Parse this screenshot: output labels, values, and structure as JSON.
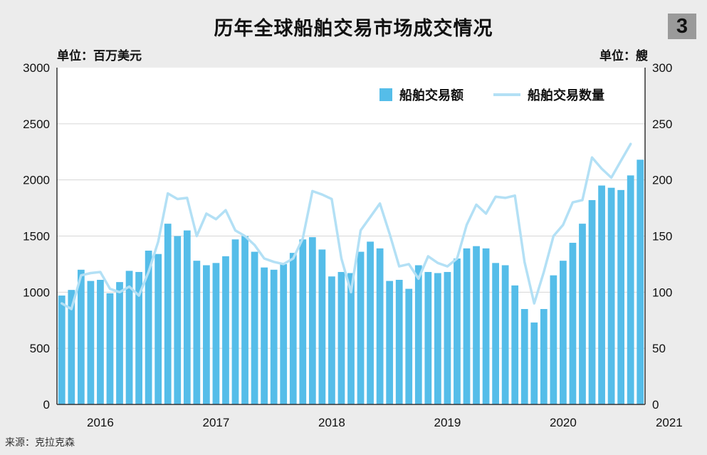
{
  "header": {
    "title": "历年全球船舶交易市场成交情况",
    "badge": "3",
    "unit_left": "单位：百万美元",
    "unit_right": "单位：艘"
  },
  "footer": {
    "source": "来源：克拉克森"
  },
  "colors": {
    "bar": "#55bde9",
    "line": "#b3e0f5",
    "background": "#ececec",
    "plot_background": "#ffffff"
  },
  "chart_data": {
    "type": "bar",
    "title": "历年全球船舶交易市场成交情况",
    "xlabel": "",
    "ylabel": "单位：百万美元",
    "y2label": "单位：艘",
    "ylim": [
      0,
      3000
    ],
    "y2lim": [
      0,
      300
    ],
    "yticks": [
      "0",
      "500",
      "1000",
      "1500",
      "2000",
      "2500",
      "3000"
    ],
    "y2ticks": [
      "0",
      "50",
      "100",
      "150",
      "200",
      "250",
      "300"
    ],
    "year_labels": [
      {
        "label": "2016",
        "index": 4
      },
      {
        "label": "2017",
        "index": 16
      },
      {
        "label": "2018",
        "index": 28
      },
      {
        "label": "2019",
        "index": 40
      },
      {
        "label": "2020",
        "index": 52
      },
      {
        "label": "2021",
        "index": 63
      }
    ],
    "grid": true,
    "legend_position": "top-right",
    "series": [
      {
        "name": "船舶交易额",
        "type": "bar",
        "axis": "left",
        "values": [
          970,
          1020,
          1200,
          1100,
          1110,
          990,
          1090,
          1190,
          1180,
          1370,
          1340,
          1610,
          1500,
          1550,
          1280,
          1240,
          1260,
          1320,
          1470,
          1500,
          1360,
          1220,
          1200,
          1250,
          1350,
          1470,
          1490,
          1380,
          1140,
          1180,
          1170,
          1360,
          1450,
          1390,
          1100,
          1110,
          1030,
          1240,
          1180,
          1170,
          1180,
          1300,
          1390,
          1410,
          1390,
          1260,
          1240,
          1060,
          850,
          730,
          850,
          1150,
          1280,
          1440,
          1610,
          1820,
          1950,
          1930,
          1910,
          2040,
          2180
        ]
      },
      {
        "name": "船舶交易数量",
        "type": "line",
        "axis": "right",
        "values": [
          90,
          85,
          115,
          117,
          118,
          103,
          100,
          105,
          97,
          118,
          145,
          188,
          183,
          184,
          150,
          170,
          165,
          173,
          155,
          150,
          142,
          130,
          127,
          125,
          130,
          148,
          190,
          187,
          183,
          130,
          100,
          155,
          167,
          179,
          152,
          123,
          125,
          112,
          132,
          126,
          123,
          130,
          160,
          178,
          170,
          185,
          184,
          186,
          127,
          90,
          118,
          150,
          160,
          180,
          182,
          220,
          210,
          202,
          217,
          232
        ]
      }
    ]
  }
}
